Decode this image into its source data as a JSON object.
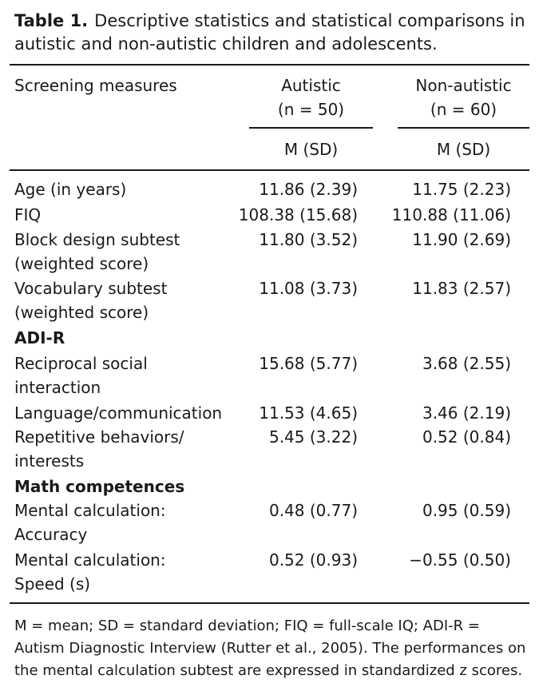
{
  "caption": {
    "label": "Table 1.",
    "text": "Descriptive statistics and statistical comparisons in autistic and non-autistic children and adolescents."
  },
  "header": {
    "col0": "Screening measures",
    "col1_line1": "Autistic",
    "col1_line2": "(n = 50)",
    "col2_line1": "Non-autistic",
    "col2_line2": "(n = 60)",
    "col1_sub": "M (SD)",
    "col2_sub": "M (SD)"
  },
  "rows": [
    {
      "label": "Age (in years)",
      "v1": "11.86 (2.39)",
      "v2": "11.75 (2.23)"
    },
    {
      "label": "FIQ",
      "v1": "108.38 (15.68)",
      "v2": "110.88 (11.06)"
    },
    {
      "label": "Block design subtest (weighted score)",
      "v1": "11.80 (3.52)",
      "v2": "11.90 (2.69)"
    },
    {
      "label": "Vocabulary subtest (weighted score)",
      "v1": "11.08 (3.73)",
      "v2": "11.83 (2.57)"
    },
    {
      "label": "Reciprocal social interaction",
      "v1": "15.68 (5.77)",
      "v2": "3.68 (2.55)"
    },
    {
      "label": "Language/communication",
      "v1": "11.53 (4.65)",
      "v2": "3.46 (2.19)"
    },
    {
      "label": "Repetitive behaviors/ interests",
      "v1": "5.45 (3.22)",
      "v2": "0.52 (0.84)"
    },
    {
      "label": "Mental calculation: Accuracy",
      "v1": "0.48 (0.77)",
      "v2": "0.95 (0.59)"
    },
    {
      "label": "Mental calculation: Speed (s)",
      "v1": "0.52 (0.93)",
      "v2": "−0.55 (0.50)"
    }
  ],
  "sections": {
    "adir": "ADI-R",
    "math": "Math competences"
  },
  "footnote": "M = mean; SD = standard deviation; FIQ = full-scale IQ; ADI-R = Autism Diagnostic Interview (Rutter et al., 2005). The performances on the mental calculation subtest are expressed in standardized z scores."
}
